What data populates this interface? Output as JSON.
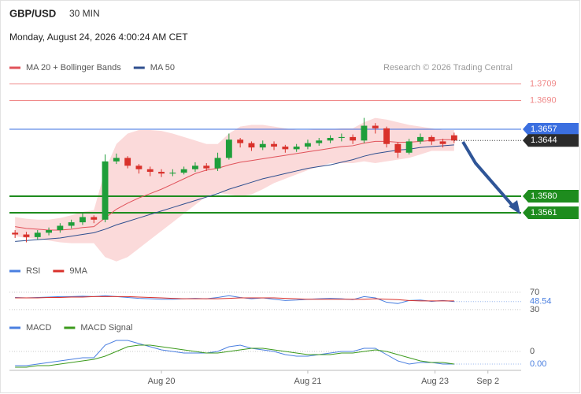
{
  "header": {
    "symbol": "GBP/USD",
    "timeframe": "30 MIN",
    "datetime": "Monday, August 24, 2026 4:00:24 AM CET",
    "credit": "Research © 2026 Trading Central"
  },
  "chart_data": [
    {
      "type": "candlestick",
      "x": [
        0,
        1,
        2,
        3,
        4,
        5,
        6,
        7,
        8,
        9,
        10,
        11,
        12,
        13,
        14,
        15,
        16,
        17,
        18,
        19,
        20,
        21,
        22,
        23,
        24,
        25,
        26,
        27,
        28,
        29,
        30,
        31,
        32,
        33,
        34,
        35,
        36,
        37,
        38,
        39
      ],
      "xlim": [
        -0.5,
        44.5
      ],
      "ylim": [
        1.35,
        1.372
      ],
      "up_color": "#1f9e3a",
      "down_color": "#d9312b",
      "open": [
        1.3538,
        1.3536,
        1.3533,
        1.3538,
        1.3541,
        1.3546,
        1.355,
        1.3556,
        1.3553,
        1.362,
        1.3624,
        1.3615,
        1.3611,
        1.3608,
        1.3606,
        1.3607,
        1.3611,
        1.3615,
        1.3612,
        1.3624,
        1.3645,
        1.3641,
        1.3636,
        1.364,
        1.3637,
        1.3634,
        1.3637,
        1.3641,
        1.3644,
        1.3647,
        1.3648,
        1.3644,
        1.3661,
        1.3658,
        1.364,
        1.363,
        1.3643,
        1.3648,
        1.3643,
        1.365
      ],
      "high": [
        1.3541,
        1.3539,
        1.3541,
        1.3544,
        1.3549,
        1.3553,
        1.356,
        1.3558,
        1.3628,
        1.3629,
        1.3626,
        1.3617,
        1.3614,
        1.3611,
        1.3611,
        1.3614,
        1.3619,
        1.3618,
        1.363,
        1.3652,
        1.3647,
        1.3643,
        1.3644,
        1.3643,
        1.3639,
        1.364,
        1.3645,
        1.3647,
        1.365,
        1.3652,
        1.3651,
        1.367,
        1.3664,
        1.366,
        1.3642,
        1.3646,
        1.3652,
        1.365,
        1.3646,
        1.3653
      ],
      "low": [
        1.3532,
        1.3527,
        1.353,
        1.3535,
        1.3538,
        1.3543,
        1.3547,
        1.3549,
        1.355,
        1.3617,
        1.3612,
        1.3606,
        1.3603,
        1.3602,
        1.3603,
        1.3605,
        1.3608,
        1.3609,
        1.3609,
        1.3622,
        1.3636,
        1.3632,
        1.3633,
        1.3633,
        1.363,
        1.3631,
        1.3634,
        1.3638,
        1.3641,
        1.3643,
        1.364,
        1.3641,
        1.3652,
        1.3636,
        1.3624,
        1.3628,
        1.364,
        1.3639,
        1.3636,
        1.3641
      ],
      "close": [
        1.3536,
        1.3533,
        1.3538,
        1.3541,
        1.3546,
        1.355,
        1.3556,
        1.3553,
        1.362,
        1.3624,
        1.3615,
        1.3611,
        1.3608,
        1.3606,
        1.3607,
        1.3611,
        1.3615,
        1.3612,
        1.3624,
        1.3645,
        1.3641,
        1.3636,
        1.364,
        1.3637,
        1.3634,
        1.3637,
        1.3641,
        1.3644,
        1.3647,
        1.3648,
        1.3644,
        1.3661,
        1.3658,
        1.364,
        1.363,
        1.3643,
        1.3648,
        1.3643,
        1.364,
        1.3644
      ],
      "last_color": "#2b2b2b",
      "band_color": "#fbdada",
      "series": [
        {
          "name": "MA 20 + Bollinger Bands",
          "color": "#e0525a",
          "values": [
            1.3545,
            1.3543,
            1.3542,
            1.3541,
            1.3541,
            1.3542,
            1.3544,
            1.3545,
            1.3555,
            1.3565,
            1.3572,
            1.3578,
            1.3583,
            1.3588,
            1.3594,
            1.36,
            1.3606,
            1.361,
            1.3612,
            1.3616,
            1.3619,
            1.3621,
            1.3623,
            1.3625,
            1.3627,
            1.3629,
            1.3631,
            1.3633,
            1.3635,
            1.3637,
            1.3638,
            1.3641,
            1.3643,
            1.3643,
            1.3642,
            1.3642,
            1.3643,
            1.3644,
            1.3645,
            1.3645
          ],
          "upper": [
            1.3556,
            1.3554,
            1.3553,
            1.3553,
            1.3555,
            1.3558,
            1.3562,
            1.3564,
            1.361,
            1.364,
            1.3652,
            1.3656,
            1.3656,
            1.3655,
            1.3652,
            1.3648,
            1.3644,
            1.364,
            1.364,
            1.3652,
            1.366,
            1.3662,
            1.3662,
            1.366,
            1.3658,
            1.3656,
            1.3656,
            1.3657,
            1.3657,
            1.3658,
            1.3658,
            1.3665,
            1.367,
            1.3668,
            1.3665,
            1.3662,
            1.366,
            1.3658,
            1.3656,
            1.3656
          ],
          "lower": [
            1.3534,
            1.3532,
            1.3531,
            1.3529,
            1.3527,
            1.3526,
            1.3526,
            1.3526,
            1.351,
            1.3505,
            1.351,
            1.352,
            1.353,
            1.354,
            1.355,
            1.356,
            1.357,
            1.358,
            1.3584,
            1.3582,
            1.358,
            1.3582,
            1.3588,
            1.3595,
            1.36,
            1.3605,
            1.361,
            1.3614,
            1.3618,
            1.3618,
            1.3618,
            1.362,
            1.3618,
            1.362,
            1.3622,
            1.3624,
            1.3628,
            1.3632,
            1.3632,
            1.3632
          ]
        },
        {
          "name": "MA 50",
          "color": "#2f4f8f",
          "values": [
            1.3528,
            1.3529,
            1.353,
            1.3531,
            1.3532,
            1.3534,
            1.3536,
            1.3538,
            1.3542,
            1.3547,
            1.3551,
            1.3555,
            1.3559,
            1.3563,
            1.3567,
            1.3571,
            1.3575,
            1.3579,
            1.3583,
            1.3588,
            1.3592,
            1.3596,
            1.36,
            1.3603,
            1.3606,
            1.3609,
            1.3612,
            1.3614,
            1.3616,
            1.3619,
            1.3622,
            1.3626,
            1.3629,
            1.3631,
            1.3633,
            1.3634,
            1.3636,
            1.3637,
            1.3638,
            1.3639
          ]
        }
      ],
      "levels": [
        {
          "value": 1.3709,
          "color": "#f08a8a",
          "style": "thin"
        },
        {
          "value": 1.369,
          "label": "1.3690",
          "color": "#f08a8a",
          "style": "thin"
        },
        {
          "value": 1.3657,
          "color": "#3b6fe0",
          "style": "thin",
          "box": true
        },
        {
          "value": 1.358,
          "label": "1.3580",
          "color": "#1e8c1e",
          "style": "thick",
          "box": true
        },
        {
          "value": 1.3561,
          "color": "#1e8c1e",
          "style": "thick",
          "box": true
        }
      ]
    },
    {
      "type": "line",
      "x": [
        0,
        1,
        2,
        3,
        4,
        5,
        6,
        7,
        8,
        9,
        10,
        11,
        12,
        13,
        14,
        15,
        16,
        17,
        18,
        19,
        20,
        21,
        22,
        23,
        24,
        25,
        26,
        27,
        28,
        29,
        30,
        31,
        32,
        33,
        34,
        35,
        36,
        37,
        38,
        39
      ],
      "xlim": [
        -0.5,
        44.5
      ],
      "ylim": [
        17,
        99
      ],
      "yticks": [
        70,
        30
      ],
      "series": [
        {
          "name": "RSI",
          "color": "#4a7fe0",
          "values": [
            58,
            57,
            58,
            59,
            60,
            60,
            61,
            60,
            62,
            60,
            58,
            56,
            55,
            54,
            54,
            55,
            56,
            55,
            58,
            62,
            58,
            55,
            57,
            54,
            51,
            52,
            54,
            55,
            56,
            55,
            53,
            60,
            57,
            47,
            44,
            51,
            52,
            49,
            51,
            48.54
          ]
        },
        {
          "name": "9MA",
          "color": "#d9312b",
          "values": [
            57,
            57,
            57,
            58,
            58,
            59,
            59,
            60,
            60,
            60,
            60,
            59,
            58,
            57,
            56,
            55,
            55,
            55,
            55,
            56,
            57,
            57,
            57,
            57,
            56,
            55,
            54,
            54,
            54,
            54,
            54,
            54,
            55,
            54,
            53,
            51,
            50,
            50,
            50,
            50
          ]
        }
      ]
    },
    {
      "type": "line",
      "x": [
        0,
        1,
        2,
        3,
        4,
        5,
        6,
        7,
        8,
        9,
        10,
        11,
        12,
        13,
        14,
        15,
        16,
        17,
        18,
        19,
        20,
        21,
        22,
        23,
        24,
        25,
        26,
        27,
        28,
        29,
        30,
        31,
        32,
        33,
        34,
        35,
        36,
        37,
        38,
        39
      ],
      "xlim": [
        -0.5,
        44.5
      ],
      "xticks": [
        {
          "value": 13,
          "label": "Aug 20"
        },
        {
          "value": 26,
          "label": "Aug 21"
        },
        {
          "value": 37.3,
          "label": "Aug 23"
        },
        {
          "value": 42,
          "label": "Sep 2"
        }
      ],
      "ylim": [
        -0.0012,
        0.00105
      ],
      "yticks": [
        0
      ],
      "series": [
        {
          "name": "MACD",
          "color": "#4a7fe0",
          "values": [
            -0.0009,
            -0.0009,
            -0.0008,
            -0.0007,
            -0.0006,
            -0.0005,
            -0.0004,
            -0.0004,
            0.0004,
            0.0007,
            0.0007,
            0.0005,
            0.0003,
            0.0001,
            0,
            -0.0001,
            -0.0001,
            -0.0001,
            0,
            0.0003,
            0.0004,
            0.0002,
            0.0001,
            0,
            -0.0002,
            -0.0003,
            -0.0003,
            -0.0002,
            -0.0001,
            0,
            0,
            0.0002,
            0.0002,
            -0.0002,
            -0.0006,
            -0.0008,
            -0.0007,
            -0.0007,
            -0.0008,
            -0.0008
          ],
          "value_labels": [
            null,
            null,
            null,
            null,
            null,
            null,
            null,
            null,
            null,
            null,
            null,
            null,
            null,
            null,
            null,
            null,
            null,
            null,
            null,
            null,
            null,
            null,
            null,
            null,
            null,
            null,
            null,
            null,
            null,
            null,
            null,
            null,
            null,
            null,
            null,
            null,
            null,
            null,
            null,
            "0.00"
          ]
        },
        {
          "name": "MACD Signal",
          "color": "#3c9a1c",
          "values": [
            -0.001,
            -0.001,
            -0.0009,
            -0.0009,
            -0.0008,
            -0.0007,
            -0.0006,
            -0.0005,
            -0.0003,
            0,
            0.0003,
            0.0004,
            0.0004,
            0.0003,
            0.0002,
            0.0001,
            0,
            -0.0001,
            -0.0001,
            0,
            0.0001,
            0.0002,
            0.0002,
            0.0001,
            0,
            -0.0001,
            -0.0002,
            -0.0002,
            -0.0002,
            -0.0001,
            -0.0001,
            0,
            0.0001,
            0,
            -0.0002,
            -0.0004,
            -0.0006,
            -0.0007,
            -0.0007,
            -0.0008
          ]
        }
      ]
    }
  ]
}
